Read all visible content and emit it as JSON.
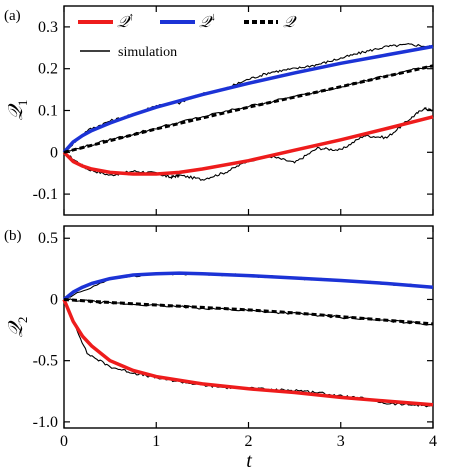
{
  "chart_data": [
    {
      "type": "line",
      "panel_label": "(a)",
      "ylabel": "𝒬",
      "ylabel_sub": "1",
      "xlim": [
        0,
        4
      ],
      "ylim": [
        -0.15,
        0.35
      ],
      "yticks": [
        -0.1,
        0,
        0.1,
        0.2,
        0.3
      ],
      "ytick_labels": [
        "-0.1",
        "0",
        "0.1",
        "0.2",
        "0.3"
      ],
      "xticks": [
        0,
        1,
        2,
        3,
        4
      ],
      "legend": [
        {
          "label": "𝒬",
          "sup": "↑",
          "color": "#ee1c1c",
          "style": "solid"
        },
        {
          "label": "𝒬",
          "sup": "↓",
          "color": "#1c33d6",
          "style": "solid"
        },
        {
          "label": "𝒬",
          "sup": "",
          "color": "#000000",
          "style": "dashed"
        }
      ],
      "legend_sim": {
        "label": "simulation",
        "color": "#000000"
      },
      "series": [
        {
          "name": "𝒬↑",
          "color": "#ee1c1c",
          "x": [
            0,
            0.1,
            0.2,
            0.3,
            0.5,
            0.75,
            1.0,
            1.25,
            1.5,
            2.0,
            2.5,
            3.0,
            3.5,
            4.0
          ],
          "y": [
            0,
            -0.022,
            -0.033,
            -0.04,
            -0.048,
            -0.052,
            -0.052,
            -0.048,
            -0.04,
            -0.02,
            0.005,
            0.03,
            0.057,
            0.085
          ]
        },
        {
          "name": "𝒬↓",
          "color": "#1c33d6",
          "x": [
            0,
            0.1,
            0.2,
            0.3,
            0.5,
            0.75,
            1.0,
            1.5,
            2.0,
            2.5,
            3.0,
            3.5,
            4.0
          ],
          "y": [
            0,
            0.025,
            0.04,
            0.052,
            0.07,
            0.09,
            0.108,
            0.138,
            0.165,
            0.19,
            0.213,
            0.233,
            0.253
          ]
        },
        {
          "name": "𝒬",
          "color": "#000000",
          "dashed": true,
          "x": [
            0,
            0.5,
            1.0,
            1.5,
            2.0,
            2.5,
            3.0,
            3.5,
            4.0
          ],
          "y": [
            0,
            0.028,
            0.056,
            0.082,
            0.108,
            0.132,
            0.157,
            0.182,
            0.207
          ]
        }
      ],
      "simulation": [
        {
          "x": [
            0,
            0.25,
            0.5,
            0.75,
            1.0,
            1.15,
            1.25,
            1.5,
            1.75,
            2.0,
            2.25,
            2.5,
            2.75,
            3.0,
            3.25,
            3.5,
            3.75,
            3.9,
            4.0
          ],
          "y": [
            0,
            -0.04,
            -0.055,
            -0.045,
            -0.05,
            -0.06,
            -0.055,
            -0.065,
            -0.048,
            -0.02,
            -0.01,
            -0.025,
            0.01,
            0.005,
            0.04,
            0.035,
            0.08,
            0.105,
            0.1
          ]
        },
        {
          "x": [
            0,
            0.25,
            0.5,
            0.75,
            1.0,
            1.25,
            1.5,
            1.75,
            2.0,
            2.25,
            2.5,
            2.75,
            3.0,
            3.25,
            3.5,
            3.75,
            4.0
          ],
          "y": [
            0,
            0.052,
            0.075,
            0.09,
            0.112,
            0.118,
            0.14,
            0.152,
            0.175,
            0.192,
            0.2,
            0.21,
            0.225,
            0.24,
            0.253,
            0.258,
            0.252
          ]
        },
        {
          "x": [
            0,
            0.5,
            1.0,
            1.5,
            2.0,
            2.5,
            3.0,
            3.5,
            4.0
          ],
          "y": [
            0,
            0.03,
            0.058,
            0.085,
            0.11,
            0.133,
            0.158,
            0.183,
            0.208
          ]
        }
      ]
    },
    {
      "type": "line",
      "panel_label": "(b)",
      "ylabel": "𝒬",
      "ylabel_sub": "2",
      "xlabel": "t",
      "xlim": [
        0,
        4
      ],
      "ylim": [
        -1.05,
        0.6
      ],
      "yticks": [
        -1.0,
        -0.5,
        0,
        0.5
      ],
      "ytick_labels": [
        "-1.0",
        "-0.5",
        "0",
        "0.5"
      ],
      "xticks": [
        0,
        1,
        2,
        3,
        4
      ],
      "xtick_labels": [
        "0",
        "1",
        "2",
        "3",
        "4"
      ],
      "series": [
        {
          "name": "𝒬↑",
          "color": "#ee1c1c",
          "x": [
            0,
            0.1,
            0.2,
            0.3,
            0.5,
            0.75,
            1.0,
            1.5,
            2.0,
            2.5,
            3.0,
            3.5,
            4.0
          ],
          "y": [
            0,
            -0.18,
            -0.3,
            -0.38,
            -0.5,
            -0.58,
            -0.63,
            -0.69,
            -0.73,
            -0.76,
            -0.8,
            -0.83,
            -0.86
          ]
        },
        {
          "name": "𝒬↓",
          "color": "#1c33d6",
          "x": [
            0,
            0.1,
            0.2,
            0.3,
            0.5,
            0.75,
            1.0,
            1.25,
            1.5,
            2.0,
            2.5,
            3.0,
            3.5,
            4.0
          ],
          "y": [
            0,
            0.06,
            0.1,
            0.13,
            0.17,
            0.2,
            0.21,
            0.215,
            0.21,
            0.195,
            0.175,
            0.155,
            0.13,
            0.1
          ]
        },
        {
          "name": "𝒬",
          "color": "#000000",
          "dashed": true,
          "x": [
            0,
            0.5,
            1.0,
            1.5,
            2.0,
            2.5,
            3.0,
            3.5,
            4.0
          ],
          "y": [
            0,
            -0.025,
            -0.045,
            -0.065,
            -0.085,
            -0.11,
            -0.14,
            -0.17,
            -0.2
          ]
        }
      ],
      "simulation": [
        {
          "x": [
            0,
            0.25,
            0.5,
            0.75,
            1.0,
            1.25,
            1.5,
            1.75,
            2.0,
            2.25,
            2.5,
            2.75,
            3.0,
            3.25,
            3.5,
            3.75,
            4.0
          ],
          "y": [
            0,
            -0.44,
            -0.55,
            -0.6,
            -0.64,
            -0.67,
            -0.7,
            -0.72,
            -0.72,
            -0.74,
            -0.74,
            -0.76,
            -0.79,
            -0.81,
            -0.85,
            -0.86,
            -0.87
          ]
        },
        {
          "x": [
            0,
            0.5,
            1.0,
            1.5,
            2.0,
            2.5,
            3.0,
            3.5,
            4.0
          ],
          "y": [
            0,
            0.17,
            0.21,
            0.21,
            0.195,
            0.175,
            0.155,
            0.13,
            0.1
          ]
        },
        {
          "x": [
            0,
            0.5,
            1.0,
            1.5,
            2.0,
            2.5,
            3.0,
            3.5,
            4.0
          ],
          "y": [
            0,
            -0.03,
            -0.05,
            -0.07,
            -0.09,
            -0.115,
            -0.145,
            -0.175,
            -0.205
          ]
        }
      ]
    }
  ]
}
